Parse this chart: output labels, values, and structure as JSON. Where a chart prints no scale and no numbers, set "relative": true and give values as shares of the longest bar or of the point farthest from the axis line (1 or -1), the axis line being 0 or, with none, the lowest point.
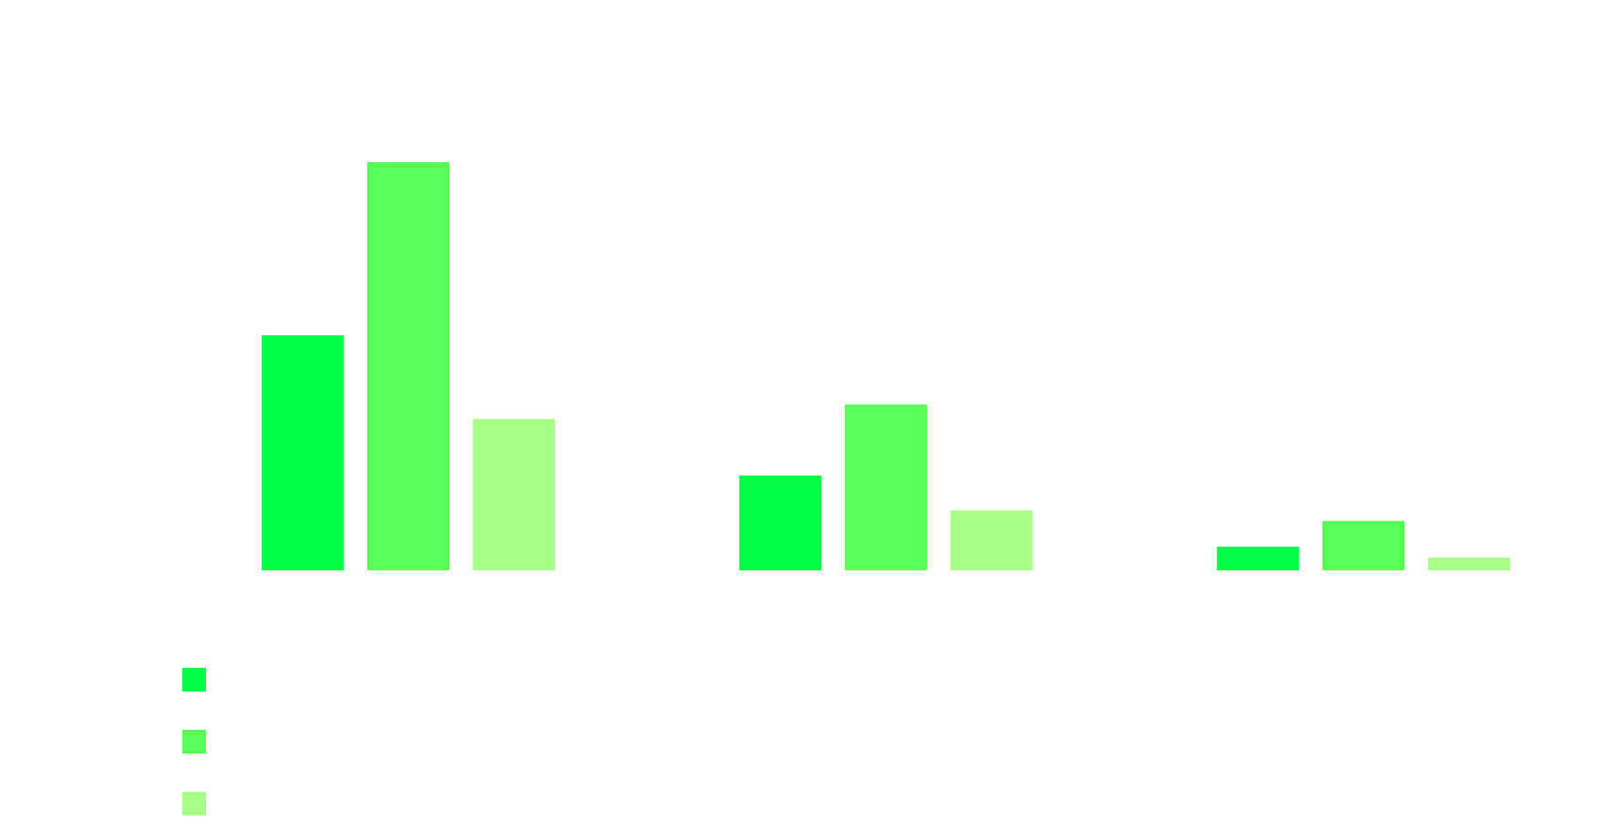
{
  "chart_data": {
    "type": "bar",
    "relative": true,
    "categories": [
      null,
      null,
      null
    ],
    "series": [
      {
        "color": "#00ff44",
        "values": [
          0.576,
          0.232,
          0.058
        ]
      },
      {
        "color": "#55ff55",
        "values": [
          1.0,
          0.406,
          0.121
        ]
      },
      {
        "color": "#aaff88",
        "values": [
          0.371,
          0.147,
          0.031
        ]
      }
    ],
    "grid": false
  }
}
